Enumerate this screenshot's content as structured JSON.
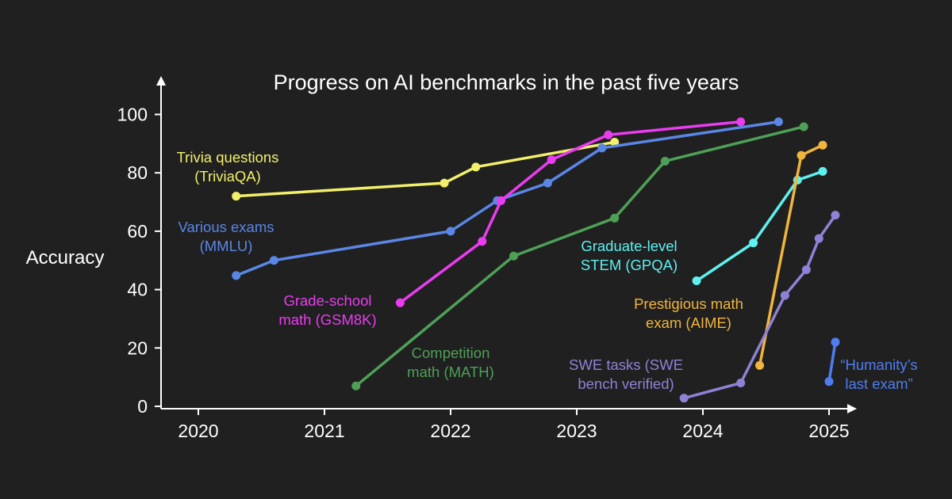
{
  "chart_data": {
    "type": "line",
    "title": "Progress on AI benchmarks in the past five years",
    "ylabel": "Accuracy",
    "xlabel": "",
    "xlim": [
      2019.7,
      2025.25
    ],
    "ylim": [
      0,
      100
    ],
    "x_ticks": [
      2020,
      2021,
      2022,
      2023,
      2024,
      2025
    ],
    "y_ticks": [
      0,
      20,
      40,
      60,
      80,
      100
    ],
    "x_tick_labels": [
      "2020",
      "2021",
      "2022",
      "2023",
      "2024",
      "2025"
    ],
    "y_tick_labels": [
      "0",
      "20",
      "40",
      "60",
      "80",
      "100"
    ],
    "grid": false,
    "legend": "none",
    "background": "#202020",
    "axis_color": "#ffffff",
    "series": [
      {
        "label_lines": [
          "Trivia questions",
          "(TriviaQA)"
        ],
        "color": "#f2ef6a",
        "points": [
          [
            2020.3,
            72
          ],
          [
            2021.95,
            76.5
          ],
          [
            2022.2,
            82
          ],
          [
            2023.3,
            90.5
          ]
        ]
      },
      {
        "label_lines": [
          "Various exams",
          "(MMLU)"
        ],
        "color": "#5a86e6",
        "points": [
          [
            2020.3,
            44.8
          ],
          [
            2020.6,
            50
          ],
          [
            2022.0,
            60
          ],
          [
            2022.37,
            70.5
          ],
          [
            2022.77,
            76.5
          ],
          [
            2023.2,
            88.5
          ],
          [
            2024.6,
            97.5
          ]
        ]
      },
      {
        "label_lines": [
          "Grade-school",
          "math (GSM8K)"
        ],
        "color": "#ea3cf0",
        "points": [
          [
            2021.6,
            35.5
          ],
          [
            2022.25,
            56.5
          ],
          [
            2022.4,
            70.5
          ],
          [
            2022.8,
            84.5
          ],
          [
            2023.25,
            93
          ],
          [
            2024.3,
            97.5
          ]
        ]
      },
      {
        "label_lines": [
          "Competition",
          "math (MATH)"
        ],
        "color": "#4ea057",
        "points": [
          [
            2021.25,
            7
          ],
          [
            2022.5,
            51.5
          ],
          [
            2023.3,
            64.5
          ],
          [
            2023.7,
            84
          ],
          [
            2024.8,
            95.8
          ]
        ]
      },
      {
        "label_lines": [
          "Graduate-level",
          "STEM (GPQA)"
        ],
        "color": "#5ff0f0",
        "points": [
          [
            2023.95,
            43
          ],
          [
            2024.4,
            56
          ],
          [
            2024.75,
            77.5
          ],
          [
            2024.95,
            80.5
          ]
        ]
      },
      {
        "label_lines": [
          "Prestigious math",
          "exam (AIME)"
        ],
        "color": "#f1b53c",
        "points": [
          [
            2024.45,
            14
          ],
          [
            2024.78,
            86
          ],
          [
            2024.95,
            89.5
          ]
        ]
      },
      {
        "label_lines": [
          "SWE tasks (SWE",
          "bench verified)"
        ],
        "color": "#8f82d6",
        "points": [
          [
            2023.85,
            2.8
          ],
          [
            2024.3,
            8
          ],
          [
            2024.65,
            38
          ],
          [
            2024.82,
            46.8
          ],
          [
            2024.92,
            57.5
          ],
          [
            2025.05,
            65.5
          ]
        ]
      },
      {
        "label_lines": [
          "“Humanity’s",
          "last exam”"
        ],
        "color": "#4f7df0",
        "points": [
          [
            2025.0,
            8.5
          ],
          [
            2025.05,
            22
          ]
        ]
      }
    ]
  }
}
